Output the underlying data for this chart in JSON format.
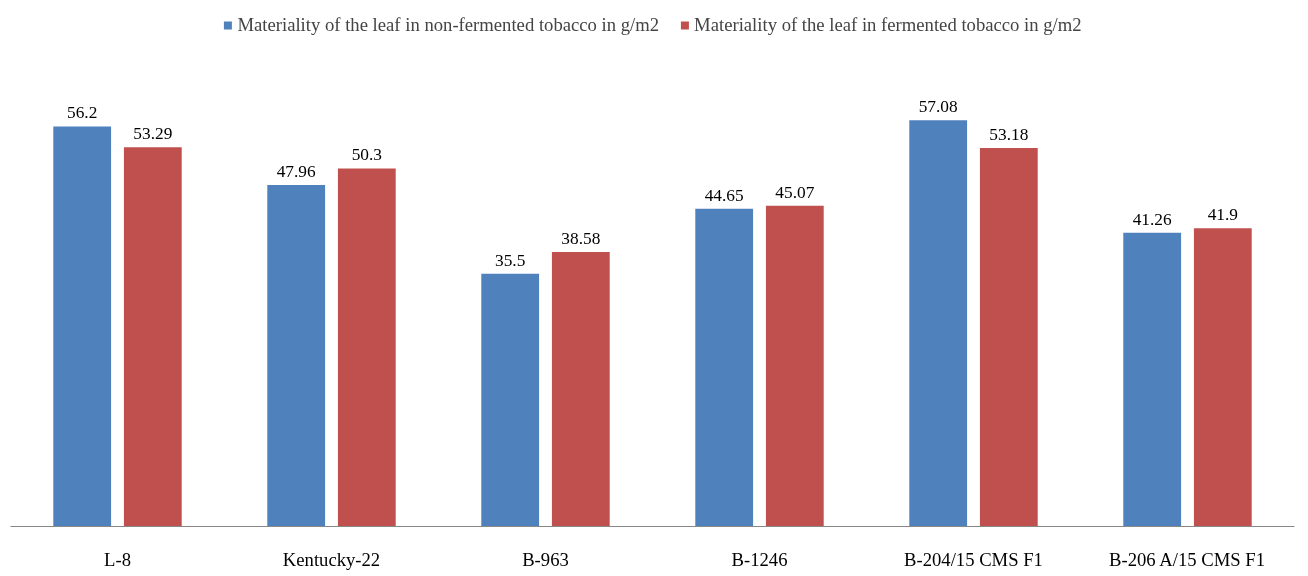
{
  "chart_data": {
    "type": "bar",
    "categories": [
      "L-8",
      "Kentucky-22",
      "B-963",
      "B-1246",
      "B-204/15 CMS F1",
      "B-206 A/15 CMS F1"
    ],
    "series": [
      {
        "name": "Materiality of the leaf in non-fermented tobacco in g/m2",
        "color": "#4f81bd",
        "values": [
          56.2,
          47.96,
          35.5,
          44.65,
          57.08,
          41.26
        ]
      },
      {
        "name": "Materiality of the leaf in fermented tobacco in g/m2",
        "color": "#c0504d",
        "values": [
          53.29,
          50.3,
          38.58,
          45.07,
          53.18,
          41.9
        ]
      }
    ],
    "data_labels": true,
    "legend": "top",
    "grid": false,
    "tick_labels": "x"
  }
}
